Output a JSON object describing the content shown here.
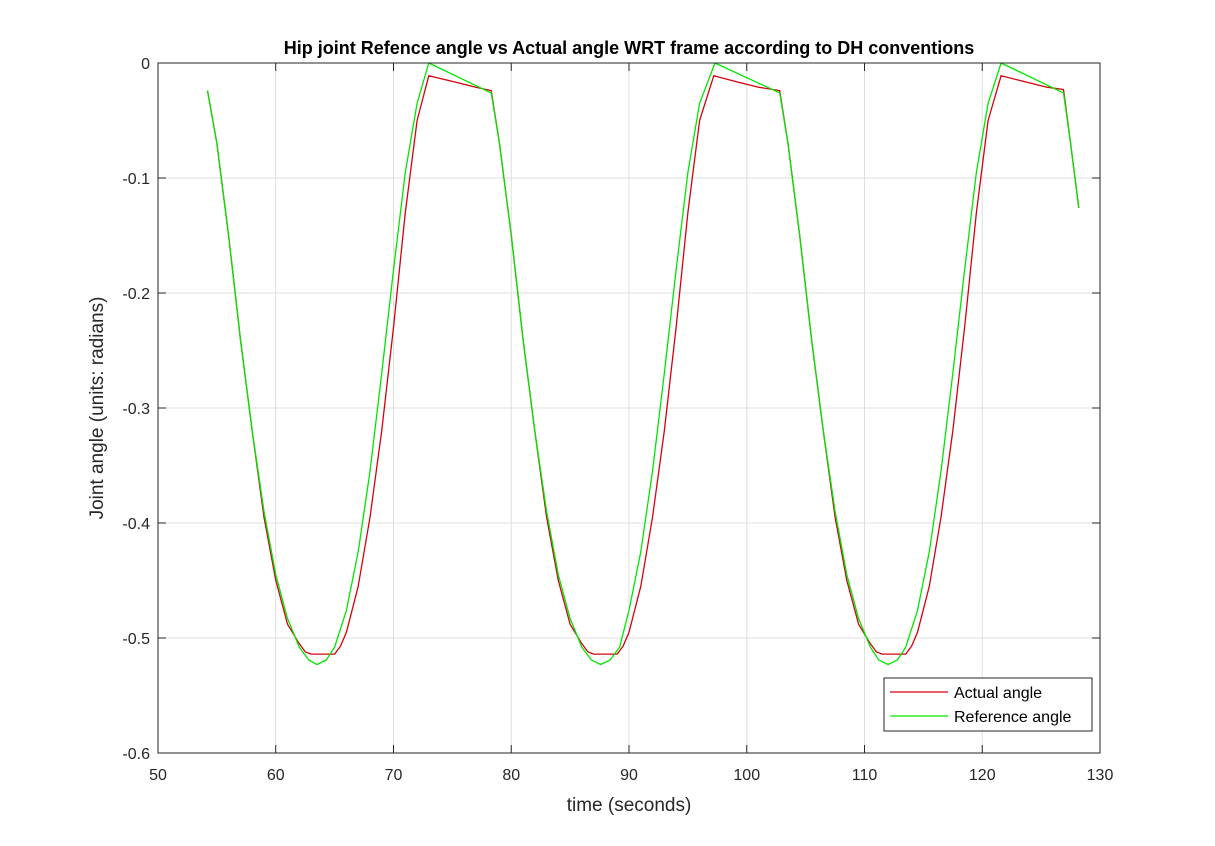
{
  "chart_data": {
    "type": "line",
    "title": "Hip joint Refence angle vs Actual angle WRT frame according to DH conventions",
    "xlabel": "time (seconds)",
    "ylabel": "Joint angle (units: radians)",
    "xlim": [
      50,
      130
    ],
    "ylim": [
      -0.6,
      0
    ],
    "xticks": [
      50,
      60,
      70,
      80,
      90,
      100,
      110,
      120,
      130
    ],
    "yticks": [
      0,
      -0.1,
      -0.2,
      -0.3,
      -0.4,
      -0.5,
      -0.6
    ],
    "xtick_labels": [
      "50",
      "60",
      "70",
      "80",
      "90",
      "100",
      "110",
      "120",
      "130"
    ],
    "ytick_labels": [
      "0",
      "-0.1",
      "-0.2",
      "-0.3",
      "-0.4",
      "-0.5",
      "-0.6"
    ],
    "grid": true,
    "legend_position": "bottom-right",
    "series": [
      {
        "name": "Actual angle",
        "color": "#d7000f",
        "x": [
          54.2,
          55.0,
          56.0,
          57.0,
          58.0,
          59.0,
          60.0,
          61.0,
          62.0,
          62.5,
          63.0,
          64.0,
          65.0,
          65.5,
          66.0,
          67.0,
          68.0,
          69.0,
          70.0,
          71.0,
          72.0,
          73.0,
          75.0,
          77.0,
          78.3,
          79.0,
          80.0,
          81.0,
          82.0,
          83.0,
          84.0,
          85.0,
          86.0,
          86.5,
          87.0,
          88.0,
          89.0,
          89.5,
          90.0,
          91.0,
          92.0,
          93.0,
          94.0,
          95.0,
          96.0,
          97.2,
          99.0,
          101.0,
          102.8,
          103.5,
          104.5,
          105.5,
          106.5,
          107.5,
          108.5,
          109.5,
          110.5,
          111.0,
          111.5,
          112.5,
          113.5,
          114.0,
          114.5,
          115.5,
          116.5,
          117.5,
          118.5,
          119.5,
          120.5,
          121.6,
          123.5,
          125.5,
          126.9,
          127.5,
          128.2
        ],
        "y": [
          -0.024,
          -0.07,
          -0.15,
          -0.24,
          -0.32,
          -0.395,
          -0.45,
          -0.488,
          -0.505,
          -0.512,
          -0.514,
          -0.514,
          -0.514,
          -0.507,
          -0.495,
          -0.455,
          -0.395,
          -0.32,
          -0.23,
          -0.13,
          -0.05,
          -0.011,
          -0.016,
          -0.021,
          -0.024,
          -0.07,
          -0.15,
          -0.24,
          -0.32,
          -0.395,
          -0.45,
          -0.488,
          -0.505,
          -0.512,
          -0.514,
          -0.514,
          -0.514,
          -0.507,
          -0.495,
          -0.455,
          -0.395,
          -0.32,
          -0.23,
          -0.13,
          -0.05,
          -0.011,
          -0.016,
          -0.021,
          -0.024,
          -0.07,
          -0.15,
          -0.24,
          -0.32,
          -0.395,
          -0.45,
          -0.488,
          -0.505,
          -0.512,
          -0.514,
          -0.514,
          -0.514,
          -0.507,
          -0.495,
          -0.455,
          -0.395,
          -0.32,
          -0.23,
          -0.13,
          -0.05,
          -0.011,
          -0.016,
          -0.021,
          -0.023,
          -0.07,
          -0.126
        ]
      },
      {
        "name": "Reference angle",
        "color": "#00e600",
        "x": [
          54.2,
          55.0,
          56.0,
          57.0,
          58.0,
          59.0,
          60.0,
          61.0,
          62.0,
          62.8,
          63.5,
          64.3,
          65.0,
          66.0,
          67.0,
          68.0,
          69.0,
          70.0,
          71.0,
          72.0,
          73.0,
          78.3,
          79.0,
          80.0,
          81.0,
          82.0,
          83.0,
          84.0,
          85.0,
          86.0,
          86.8,
          87.6,
          88.4,
          89.2,
          90.0,
          91.0,
          92.0,
          93.0,
          94.0,
          95.0,
          96.0,
          97.3,
          102.8,
          103.5,
          104.5,
          105.5,
          106.5,
          107.5,
          108.5,
          109.5,
          110.5,
          111.2,
          112.0,
          112.8,
          113.5,
          114.5,
          115.5,
          116.5,
          117.5,
          118.5,
          119.5,
          120.5,
          121.6,
          126.9,
          127.5,
          128.2
        ],
        "y": [
          -0.024,
          -0.07,
          -0.15,
          -0.24,
          -0.32,
          -0.39,
          -0.445,
          -0.483,
          -0.508,
          -0.519,
          -0.523,
          -0.519,
          -0.508,
          -0.476,
          -0.425,
          -0.355,
          -0.27,
          -0.18,
          -0.095,
          -0.035,
          0.0,
          -0.026,
          -0.07,
          -0.15,
          -0.24,
          -0.32,
          -0.39,
          -0.445,
          -0.483,
          -0.508,
          -0.519,
          -0.523,
          -0.519,
          -0.508,
          -0.476,
          -0.425,
          -0.355,
          -0.27,
          -0.18,
          -0.095,
          -0.035,
          0.0,
          -0.026,
          -0.07,
          -0.15,
          -0.24,
          -0.32,
          -0.39,
          -0.445,
          -0.483,
          -0.508,
          -0.519,
          -0.523,
          -0.519,
          -0.508,
          -0.476,
          -0.425,
          -0.355,
          -0.27,
          -0.18,
          -0.095,
          -0.035,
          0.0,
          -0.026,
          -0.07,
          -0.126
        ]
      }
    ]
  }
}
